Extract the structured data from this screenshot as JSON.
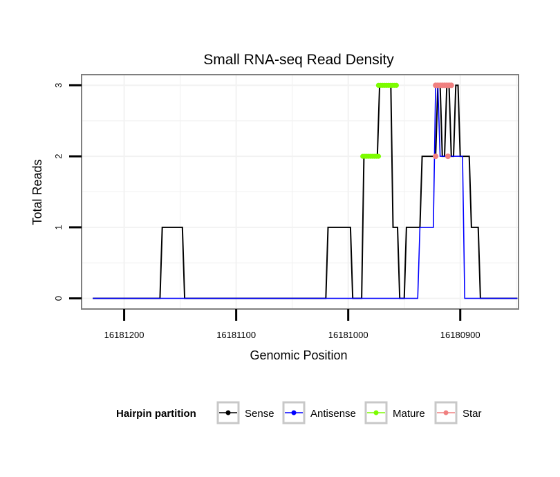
{
  "chart_data": {
    "type": "line",
    "title": "Small RNA-seq Read Density",
    "xlabel": "Genomic Position",
    "ylabel": "Total Reads",
    "x_reversed": true,
    "xlim": [
      16181238,
      16180848
    ],
    "ylim": [
      -0.15,
      3.15
    ],
    "x_ticks": [
      16181200,
      16181100,
      16181000,
      16180900
    ],
    "x_tick_labels": [
      "16181200",
      "16181100",
      "16181000",
      "16180900"
    ],
    "y_ticks": [
      0,
      1,
      2,
      3
    ],
    "y_tick_labels": [
      "0",
      "1",
      "2",
      "3"
    ],
    "grid": true,
    "legend": {
      "title": "Hairpin partition",
      "position": "bottom",
      "entries": [
        {
          "name": "Sense",
          "color": "#000000"
        },
        {
          "name": "Antisense",
          "color": "#0000ff"
        },
        {
          "name": "Mature",
          "color": "#7cfc00"
        },
        {
          "name": "Star",
          "color": "#f08080"
        }
      ]
    },
    "series": [
      {
        "name": "Sense",
        "color": "#000000",
        "x": [
          16181228,
          16181168,
          16181166,
          16181148,
          16181146,
          16181020,
          16181018,
          16180998,
          16180996,
          16180988,
          16180986,
          16180974,
          16180972,
          16180962,
          16180960,
          16180956,
          16180954,
          16180950,
          16180948,
          16180936,
          16180934,
          16180922,
          16180920,
          16180918,
          16180916,
          16180914,
          16180912,
          16180910,
          16180908,
          16180906,
          16180904,
          16180902,
          16180900,
          16180896,
          16180894,
          16180892,
          16180890,
          16180888,
          16180886,
          16180884,
          16180882,
          16180849
        ],
        "y": [
          0,
          0,
          1,
          1,
          0,
          0,
          1,
          1,
          0,
          0,
          2,
          2,
          3,
          3,
          1,
          1,
          0,
          0,
          1,
          1,
          2,
          2,
          3,
          3,
          2,
          2,
          3,
          3,
          2,
          2,
          3,
          3,
          2,
          2,
          2,
          2,
          1,
          1,
          1,
          1,
          0,
          0
        ]
      },
      {
        "name": "Antisense",
        "color": "#0000ff",
        "x": [
          16181228,
          16180938,
          16180936,
          16180924,
          16180922,
          16180920,
          16180918,
          16180898,
          16180896,
          16180849
        ],
        "y": [
          0,
          0,
          1,
          1,
          3,
          3,
          2,
          2,
          0,
          0
        ],
        "line_width": 1.6
      },
      {
        "name": "Mature",
        "color": "#7cfc00",
        "segments": [
          {
            "x": [
              16180987,
              16180973
            ],
            "y": [
              2,
              2
            ]
          },
          {
            "x": [
              16180973,
              16180957
            ],
            "y": [
              3,
              3
            ]
          }
        ]
      },
      {
        "name": "Star",
        "color": "#f08080",
        "points": [
          {
            "x": 16180922,
            "y": 2
          },
          {
            "x": 16180911,
            "y": 2
          },
          {
            "x": 16180922,
            "y": 3
          },
          {
            "x": 16180920,
            "y": 3
          },
          {
            "x": 16180918,
            "y": 3
          },
          {
            "x": 16180916,
            "y": 3
          },
          {
            "x": 16180914,
            "y": 3
          },
          {
            "x": 16180912,
            "y": 3
          },
          {
            "x": 16180910,
            "y": 3
          },
          {
            "x": 16180908,
            "y": 3
          }
        ]
      }
    ]
  }
}
